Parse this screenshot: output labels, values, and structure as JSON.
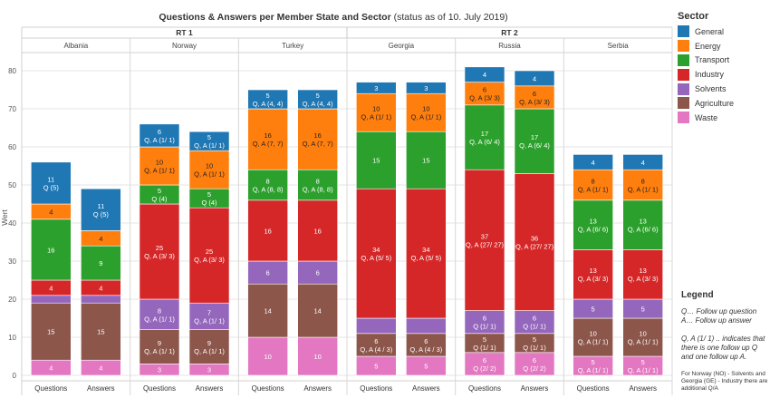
{
  "page_title": "Questions & Answers per Member State and Sector",
  "page_title_suffix": "(status as of 10. July 2019)",
  "colors": {
    "General": "#1f77b4",
    "Energy": "#ff7f0e",
    "Transport": "#2ca02c",
    "Industry": "#d62728",
    "Solvents": "#9467bd",
    "Agriculture": "#8c564b",
    "Waste": "#e377c2"
  },
  "sector_legend": {
    "title": "Sector",
    "items": [
      "General",
      "Energy",
      "Transport",
      "Industry",
      "Solvents",
      "Agriculture",
      "Waste"
    ]
  },
  "notes": {
    "title": "Legend",
    "line1": "Q… Follow up question",
    "line2": "A… Follow up answer",
    "line3": "Q, A (1/ 1) .. indicates that",
    "line4": "there is one follow up Q",
    "line5": "and one follow up A.",
    "small1": "For Norway (NO) - Solvents and",
    "small2": "Georgia (GE) - Industry there are",
    "small3": "additional Q/A"
  },
  "chart_data": {
    "type": "bar",
    "stacked": true,
    "title": "Questions & Answers per Member State and Sector (status as of 10. July 2019)",
    "ylabel": "Wert",
    "ylim": [
      0,
      85
    ],
    "yticks": [
      0,
      10,
      20,
      30,
      40,
      50,
      60,
      70,
      80
    ],
    "grid": true,
    "legend_position": "right",
    "stack_order": [
      "Waste",
      "Agriculture",
      "Solvents",
      "Industry",
      "Transport",
      "Energy",
      "General"
    ],
    "rounds": [
      {
        "label": "RT 1",
        "countries": [
          "Albania",
          "Norway",
          "Turkey"
        ]
      },
      {
        "label": "RT 2",
        "countries": [
          "Georgia",
          "Russia",
          "Serbia"
        ]
      }
    ],
    "bars": [
      {
        "country": "Albania",
        "category": "Questions",
        "segments": [
          {
            "sector": "Waste",
            "value": 4,
            "label": [
              "4"
            ]
          },
          {
            "sector": "Agriculture",
            "value": 15,
            "label": [
              "15"
            ]
          },
          {
            "sector": "Solvents",
            "value": 2,
            "label": []
          },
          {
            "sector": "Industry",
            "value": 4,
            "label": [
              "4"
            ]
          },
          {
            "sector": "Transport",
            "value": 16,
            "label": [
              "16"
            ]
          },
          {
            "sector": "Energy",
            "value": 4,
            "label": [
              "4"
            ]
          },
          {
            "sector": "General",
            "value": 11,
            "label": [
              "11",
              "Q (5)"
            ]
          }
        ]
      },
      {
        "country": "Albania",
        "category": "Answers",
        "segments": [
          {
            "sector": "Waste",
            "value": 4,
            "label": [
              "4"
            ]
          },
          {
            "sector": "Agriculture",
            "value": 15,
            "label": [
              "15"
            ]
          },
          {
            "sector": "Solvents",
            "value": 2,
            "label": []
          },
          {
            "sector": "Industry",
            "value": 4,
            "label": [
              "4"
            ]
          },
          {
            "sector": "Transport",
            "value": 9,
            "label": [
              "9"
            ]
          },
          {
            "sector": "Energy",
            "value": 4,
            "label": [
              "4"
            ]
          },
          {
            "sector": "General",
            "value": 11,
            "label": [
              "11",
              "Q (5)"
            ]
          }
        ]
      },
      {
        "country": "Norway",
        "category": "Questions",
        "segments": [
          {
            "sector": "Waste",
            "value": 3,
            "label": [
              "3"
            ]
          },
          {
            "sector": "Agriculture",
            "value": 9,
            "label": [
              "9",
              "Q, A (1/ 1)"
            ]
          },
          {
            "sector": "Solvents",
            "value": 8,
            "label": [
              "8",
              "Q, A (1/ 1)"
            ]
          },
          {
            "sector": "Industry",
            "value": 25,
            "label": [
              "25",
              "Q, A (3/ 3)"
            ]
          },
          {
            "sector": "Transport",
            "value": 5,
            "label": [
              "5",
              "Q (4)"
            ]
          },
          {
            "sector": "Energy",
            "value": 10,
            "label": [
              "10",
              "Q, A (1/ 1)"
            ]
          },
          {
            "sector": "General",
            "value": 6,
            "label": [
              "6",
              "Q, A (1/ 1)"
            ]
          }
        ]
      },
      {
        "country": "Norway",
        "category": "Answers",
        "segments": [
          {
            "sector": "Waste",
            "value": 3,
            "label": [
              "3"
            ]
          },
          {
            "sector": "Agriculture",
            "value": 9,
            "label": [
              "9",
              "Q, A (1/ 1)"
            ]
          },
          {
            "sector": "Solvents",
            "value": 7,
            "label": [
              "7",
              "Q, A (1/ 1)"
            ]
          },
          {
            "sector": "Industry",
            "value": 25,
            "label": [
              "25",
              "Q, A (3/ 3)"
            ]
          },
          {
            "sector": "Transport",
            "value": 5,
            "label": [
              "5",
              "Q (4)"
            ]
          },
          {
            "sector": "Energy",
            "value": 10,
            "label": [
              "10",
              "Q, A (1/ 1)"
            ]
          },
          {
            "sector": "General",
            "value": 5,
            "label": [
              "5",
              "Q, A (1/ 1)"
            ]
          }
        ]
      },
      {
        "country": "Turkey",
        "category": "Questions",
        "segments": [
          {
            "sector": "Waste",
            "value": 10,
            "label": [
              "10"
            ]
          },
          {
            "sector": "Agriculture",
            "value": 14,
            "label": [
              "14"
            ]
          },
          {
            "sector": "Solvents",
            "value": 6,
            "label": [
              "6"
            ]
          },
          {
            "sector": "Industry",
            "value": 16,
            "label": [
              "16"
            ]
          },
          {
            "sector": "Transport",
            "value": 8,
            "label": [
              "8",
              "Q, A (8, 8)"
            ]
          },
          {
            "sector": "Energy",
            "value": 16,
            "label": [
              "16",
              "Q, A (7, 7)"
            ]
          },
          {
            "sector": "General",
            "value": 5,
            "label": [
              "5",
              "Q, A (4, 4)"
            ]
          }
        ]
      },
      {
        "country": "Turkey",
        "category": "Answers",
        "segments": [
          {
            "sector": "Waste",
            "value": 10,
            "label": [
              "10"
            ]
          },
          {
            "sector": "Agriculture",
            "value": 14,
            "label": [
              "14"
            ]
          },
          {
            "sector": "Solvents",
            "value": 6,
            "label": [
              "6"
            ]
          },
          {
            "sector": "Industry",
            "value": 16,
            "label": [
              "16"
            ]
          },
          {
            "sector": "Transport",
            "value": 8,
            "label": [
              "8",
              "Q, A (8, 8)"
            ]
          },
          {
            "sector": "Energy",
            "value": 16,
            "label": [
              "16",
              "Q, A (7, 7)"
            ]
          },
          {
            "sector": "General",
            "value": 5,
            "label": [
              "5",
              "Q, A (4, 4)"
            ]
          }
        ]
      },
      {
        "country": "Georgia",
        "category": "Questions",
        "segments": [
          {
            "sector": "Waste",
            "value": 5,
            "label": [
              "5"
            ]
          },
          {
            "sector": "Agriculture",
            "value": 6,
            "label": [
              "6",
              "Q, A (4 / 3)"
            ]
          },
          {
            "sector": "Solvents",
            "value": 4,
            "label": []
          },
          {
            "sector": "Industry",
            "value": 34,
            "label": [
              "34",
              "Q, A (5/ 5)"
            ]
          },
          {
            "sector": "Transport",
            "value": 15,
            "label": [
              "15"
            ]
          },
          {
            "sector": "Energy",
            "value": 10,
            "label": [
              "10",
              "Q, A (1/ 1)"
            ]
          },
          {
            "sector": "General",
            "value": 3,
            "label": [
              "3"
            ]
          }
        ]
      },
      {
        "country": "Georgia",
        "category": "Answers",
        "segments": [
          {
            "sector": "Waste",
            "value": 5,
            "label": [
              "5"
            ]
          },
          {
            "sector": "Agriculture",
            "value": 6,
            "label": [
              "6",
              "Q, A (4 / 3)"
            ]
          },
          {
            "sector": "Solvents",
            "value": 4,
            "label": []
          },
          {
            "sector": "Industry",
            "value": 34,
            "label": [
              "34",
              "Q, A (5/ 5)"
            ]
          },
          {
            "sector": "Transport",
            "value": 15,
            "label": [
              "15"
            ]
          },
          {
            "sector": "Energy",
            "value": 10,
            "label": [
              "10",
              "Q, A (1/ 1)"
            ]
          },
          {
            "sector": "General",
            "value": 3,
            "label": [
              "3"
            ]
          }
        ]
      },
      {
        "country": "Russia",
        "category": "Questions",
        "segments": [
          {
            "sector": "Waste",
            "value": 6,
            "label": [
              "6",
              "Q (2/ 2)"
            ]
          },
          {
            "sector": "Agriculture",
            "value": 5,
            "label": [
              "5",
              "Q (1/ 1)"
            ]
          },
          {
            "sector": "Solvents",
            "value": 6,
            "label": [
              "6",
              "Q (1/ 1)"
            ]
          },
          {
            "sector": "Industry",
            "value": 37,
            "label": [
              "37",
              "Q, A (27/ 27)"
            ]
          },
          {
            "sector": "Transport",
            "value": 17,
            "label": [
              "17",
              "Q, A (6/ 4)"
            ]
          },
          {
            "sector": "Energy",
            "value": 6,
            "label": [
              "6",
              "Q, A (3/ 3)"
            ]
          },
          {
            "sector": "General",
            "value": 4,
            "label": [
              "4"
            ]
          }
        ]
      },
      {
        "country": "Russia",
        "category": "Answers",
        "segments": [
          {
            "sector": "Waste",
            "value": 6,
            "label": [
              "6",
              "Q (2/ 2)"
            ]
          },
          {
            "sector": "Agriculture",
            "value": 5,
            "label": [
              "5",
              "Q (1/ 1)"
            ]
          },
          {
            "sector": "Solvents",
            "value": 6,
            "label": [
              "6",
              "Q (1/ 1)"
            ]
          },
          {
            "sector": "Industry",
            "value": 36,
            "label": [
              "36",
              "Q, A (27/ 27)"
            ]
          },
          {
            "sector": "Transport",
            "value": 17,
            "label": [
              "17",
              "Q, A (6/ 4)"
            ]
          },
          {
            "sector": "Energy",
            "value": 6,
            "label": [
              "6",
              "Q, A (3/ 3)"
            ]
          },
          {
            "sector": "General",
            "value": 4,
            "label": [
              "4"
            ]
          }
        ]
      },
      {
        "country": "Serbia",
        "category": "Questions",
        "segments": [
          {
            "sector": "Waste",
            "value": 5,
            "label": [
              "5",
              "Q, A (1/ 1)"
            ]
          },
          {
            "sector": "Agriculture",
            "value": 10,
            "label": [
              "10",
              "Q, A (1/ 1)"
            ]
          },
          {
            "sector": "Solvents",
            "value": 5,
            "label": [
              "5"
            ]
          },
          {
            "sector": "Industry",
            "value": 13,
            "label": [
              "13",
              "Q, A (3/ 3)"
            ]
          },
          {
            "sector": "Transport",
            "value": 13,
            "label": [
              "13",
              "Q, A (6/ 6)"
            ]
          },
          {
            "sector": "Energy",
            "value": 8,
            "label": [
              "8",
              "Q, A (1/ 1)"
            ]
          },
          {
            "sector": "General",
            "value": 4,
            "label": [
              "4"
            ]
          }
        ]
      },
      {
        "country": "Serbia",
        "category": "Answers",
        "segments": [
          {
            "sector": "Waste",
            "value": 5,
            "label": [
              "5",
              "Q, A (1/ 1)"
            ]
          },
          {
            "sector": "Agriculture",
            "value": 10,
            "label": [
              "10",
              "Q, A (1/ 1)"
            ]
          },
          {
            "sector": "Solvents",
            "value": 5,
            "label": [
              "5"
            ]
          },
          {
            "sector": "Industry",
            "value": 13,
            "label": [
              "13",
              "Q, A (3/ 3)"
            ]
          },
          {
            "sector": "Transport",
            "value": 13,
            "label": [
              "13",
              "Q, A (6/ 6)"
            ]
          },
          {
            "sector": "Energy",
            "value": 8,
            "label": [
              "8",
              "Q, A (1/ 1)"
            ]
          },
          {
            "sector": "General",
            "value": 4,
            "label": [
              "4"
            ]
          }
        ]
      }
    ]
  }
}
